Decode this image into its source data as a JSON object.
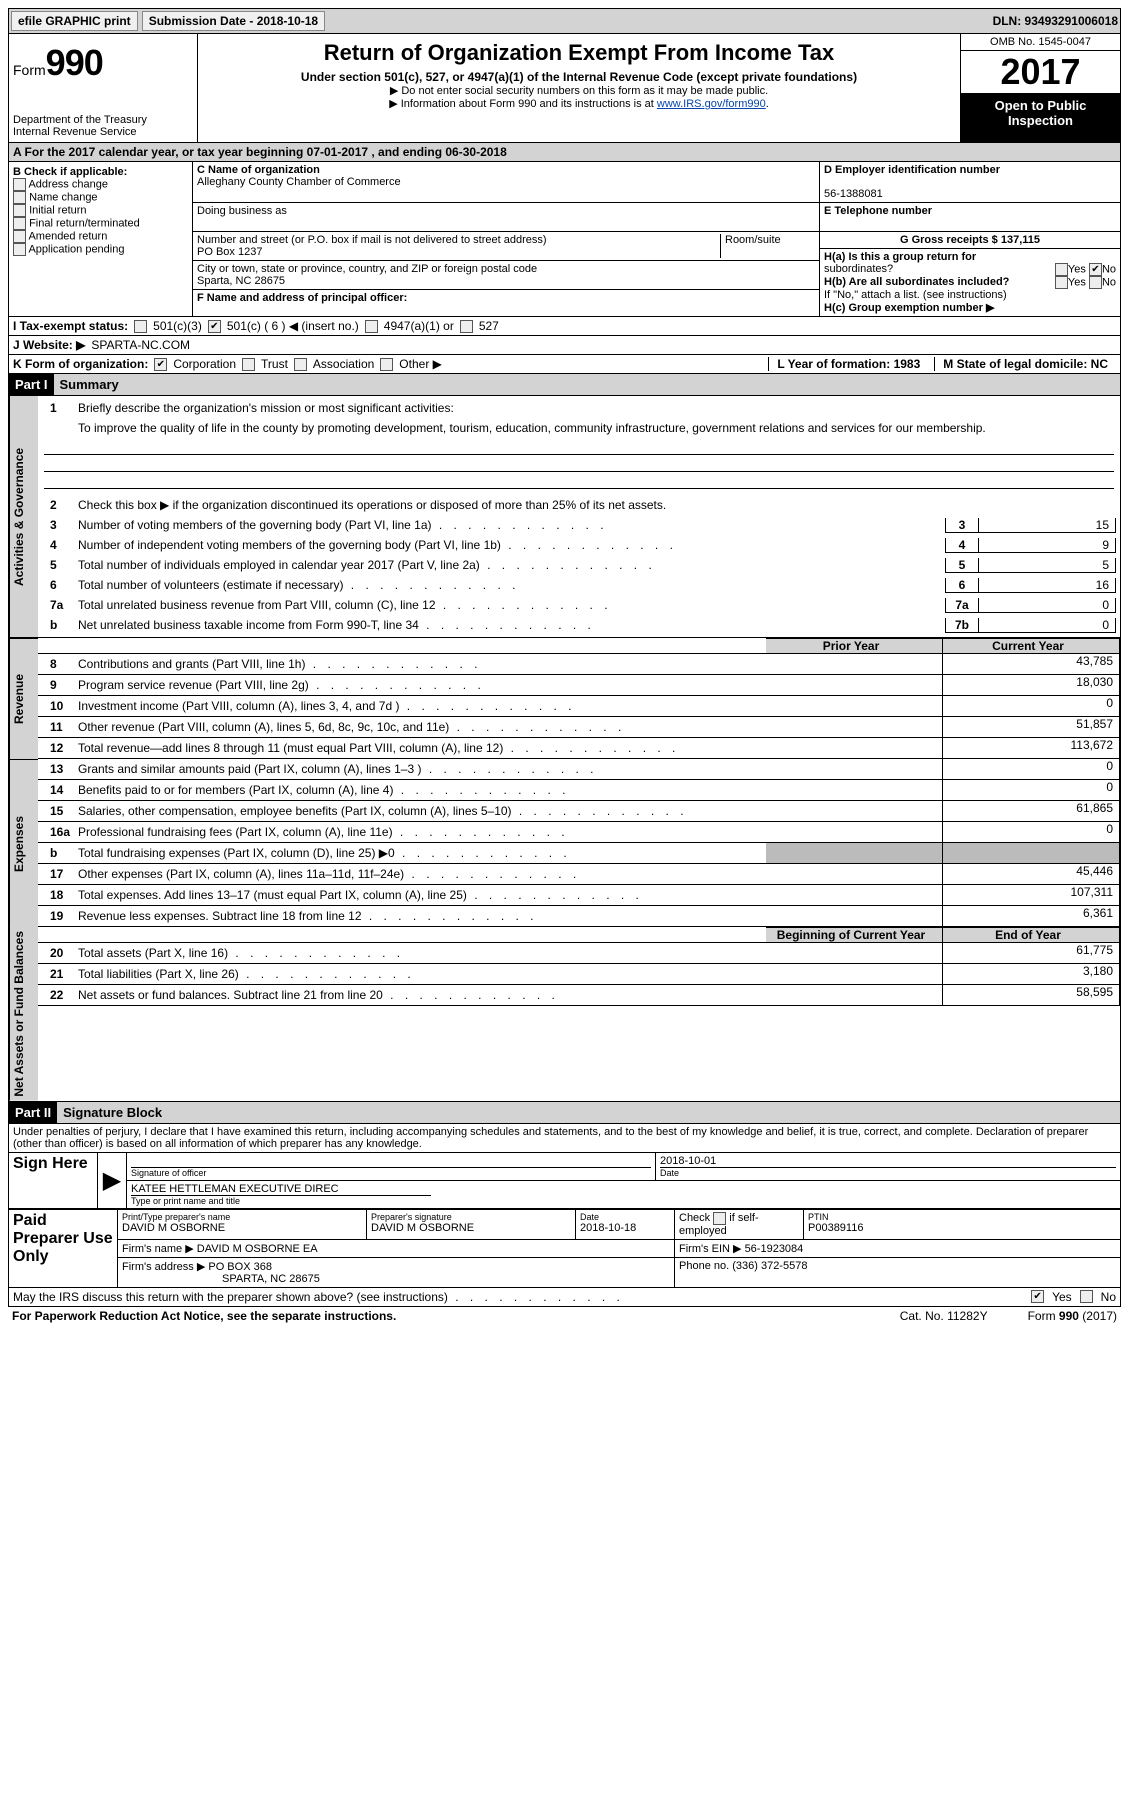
{
  "topBar": {
    "efile": "efile GRAPHIC print",
    "subDateLabel": "Submission Date - 2018-10-18",
    "dln": "DLN: 93493291006018"
  },
  "header": {
    "formWord": "Form",
    "formNum": "990",
    "dept1": "Department of the Treasury",
    "dept2": "Internal Revenue Service",
    "title": "Return of Organization Exempt From Income Tax",
    "subtitle": "Under section 501(c), 527, or 4947(a)(1) of the Internal Revenue Code (except private foundations)",
    "note1": "▶ Do not enter social security numbers on this form as it may be made public.",
    "note2_a": "▶ Information about Form 990 and its instructions is at ",
    "note2_link": "www.IRS.gov/form990",
    "note2_b": ".",
    "omb": "OMB No. 1545-0047",
    "year": "2017",
    "open1": "Open to Public",
    "open2": "Inspection"
  },
  "rowA": "A  For the 2017 calendar year, or tax year beginning 07-01-2017    , and ending 06-30-2018",
  "colB": {
    "label": "B Check if applicable:",
    "items": [
      "Address change",
      "Name change",
      "Initial return",
      "Final return/terminated",
      "Amended return",
      "Application pending"
    ]
  },
  "colC": {
    "nameLabel": "C Name of organization",
    "name": "Alleghany County Chamber of Commerce",
    "dbaLabel": "Doing business as",
    "streetLabel": "Number and street (or P.O. box if mail is not delivered to street address)",
    "roomLabel": "Room/suite",
    "street": "PO Box 1237",
    "cityLabel": "City or town, state or province, country, and ZIP or foreign postal code",
    "city": "Sparta, NC  28675",
    "officerLabel": "F Name and address of principal officer:"
  },
  "colD": {
    "einLabel": "D Employer identification number",
    "ein": "56-1388081",
    "phoneLabel": "E Telephone number",
    "grossLabel": "G Gross receipts $ 137,115",
    "ha": "H(a)  Is this a group return for",
    "ha2": "subordinates?",
    "hb": "H(b) Are all subordinates included?",
    "hbNote": "If \"No,\" attach a list. (see instructions)",
    "hc": "H(c) Group exemption number ▶",
    "yes": "Yes",
    "no": "No"
  },
  "rowI": {
    "label": "I  Tax-exempt status:",
    "o1": "501(c)(3)",
    "o2": "501(c) ( 6 ) ◀ (insert no.)",
    "o3": "4947(a)(1) or",
    "o4": "527"
  },
  "rowJ": {
    "label": "J  Website: ▶",
    "value": " SPARTA-NC.COM"
  },
  "rowK": {
    "label": "K Form of organization:",
    "o1": "Corporation",
    "o2": "Trust",
    "o3": "Association",
    "o4": "Other ▶",
    "l": "L Year of formation: 1983",
    "m": "M State of legal domicile: NC"
  },
  "part1": {
    "hdr": "Part I",
    "title": "Summary"
  },
  "mission": {
    "n": "1",
    "label": "Briefly describe the organization's mission or most significant activities:",
    "text": "To improve the quality of life in the county by promoting development, tourism, education, community infrastructure, government relations and services for our membership."
  },
  "gov": {
    "l2": "Check this box ▶        if the organization discontinued its operations or disposed of more than 25% of its net assets.",
    "rows": [
      {
        "n": "3",
        "d": "Number of voting members of the governing body (Part VI, line 1a)",
        "k": "3",
        "v": "15"
      },
      {
        "n": "4",
        "d": "Number of independent voting members of the governing body (Part VI, line 1b)",
        "k": "4",
        "v": "9"
      },
      {
        "n": "5",
        "d": "Total number of individuals employed in calendar year 2017 (Part V, line 2a)",
        "k": "5",
        "v": "5"
      },
      {
        "n": "6",
        "d": "Total number of volunteers (estimate if necessary)",
        "k": "6",
        "v": "16"
      },
      {
        "n": "7a",
        "d": "Total unrelated business revenue from Part VIII, column (C), line 12",
        "k": "7a",
        "v": "0"
      },
      {
        "n": "b",
        "d": "Net unrelated business taxable income from Form 990-T, line 34",
        "k": "7b",
        "v": "0"
      }
    ]
  },
  "twoColHdr": {
    "prior": "Prior Year",
    "current": "Current Year"
  },
  "rev": [
    {
      "n": "8",
      "d": "Contributions and grants (Part VIII, line 1h)",
      "p": "",
      "c": "43,785"
    },
    {
      "n": "9",
      "d": "Program service revenue (Part VIII, line 2g)",
      "p": "",
      "c": "18,030"
    },
    {
      "n": "10",
      "d": "Investment income (Part VIII, column (A), lines 3, 4, and 7d )",
      "p": "",
      "c": "0"
    },
    {
      "n": "11",
      "d": "Other revenue (Part VIII, column (A), lines 5, 6d, 8c, 9c, 10c, and 11e)",
      "p": "",
      "c": "51,857"
    },
    {
      "n": "12",
      "d": "Total revenue—add lines 8 through 11 (must equal Part VIII, column (A), line 12)",
      "p": "",
      "c": "113,672"
    }
  ],
  "exp": [
    {
      "n": "13",
      "d": "Grants and similar amounts paid (Part IX, column (A), lines 1–3 )",
      "p": "",
      "c": "0"
    },
    {
      "n": "14",
      "d": "Benefits paid to or for members (Part IX, column (A), line 4)",
      "p": "",
      "c": "0"
    },
    {
      "n": "15",
      "d": "Salaries, other compensation, employee benefits (Part IX, column (A), lines 5–10)",
      "p": "",
      "c": "61,865"
    },
    {
      "n": "16a",
      "d": "Professional fundraising fees (Part IX, column (A), line 11e)",
      "p": "",
      "c": "0"
    },
    {
      "n": "b",
      "d": "Total fundraising expenses (Part IX, column (D), line 25) ▶0",
      "p": "shade",
      "c": "shade"
    },
    {
      "n": "17",
      "d": "Other expenses (Part IX, column (A), lines 11a–11d, 11f–24e)",
      "p": "",
      "c": "45,446"
    },
    {
      "n": "18",
      "d": "Total expenses. Add lines 13–17 (must equal Part IX, column (A), line 25)",
      "p": "",
      "c": "107,311"
    },
    {
      "n": "19",
      "d": "Revenue less expenses. Subtract line 18 from line 12",
      "p": "",
      "c": "6,361"
    }
  ],
  "netHdr": {
    "beg": "Beginning of Current Year",
    "end": "End of Year"
  },
  "net": [
    {
      "n": "20",
      "d": "Total assets (Part X, line 16)",
      "p": "",
      "c": "61,775"
    },
    {
      "n": "21",
      "d": "Total liabilities (Part X, line 26)",
      "p": "",
      "c": "3,180"
    },
    {
      "n": "22",
      "d": "Net assets or fund balances. Subtract line 21 from line 20",
      "p": "",
      "c": "58,595"
    }
  ],
  "part2": {
    "hdr": "Part II",
    "title": "Signature Block"
  },
  "penalty": "Under penalties of perjury, I declare that I have examined this return, including accompanying schedules and statements, and to the best of my knowledge and belief, it is true, correct, and complete. Declaration of preparer (other than officer) is based on all information of which preparer has any knowledge.",
  "sign": {
    "here": "Sign Here",
    "sigOfficer": "Signature of officer",
    "date": "Date",
    "dateVal": "2018-10-01",
    "nameTitle": "KATEE HETTLEMAN  EXECUTIVE DIREC",
    "typeLabel": "Type or print name and title"
  },
  "preparer": {
    "label": "Paid Preparer Use Only",
    "nameLabel": "Print/Type preparer's name",
    "name": "DAVID M OSBORNE",
    "sigLabel": "Preparer's signature",
    "sig": "DAVID M OSBORNE",
    "dateLabel": "Date",
    "date": "2018-10-18",
    "checkLabel": "Check        if self-employed",
    "ptinLabel": "PTIN",
    "ptin": "P00389116",
    "firmNameLabel": "Firm's name     ▶",
    "firmName": "DAVID M OSBORNE EA",
    "firmEinLabel": "Firm's EIN ▶",
    "firmEin": "56-1923084",
    "firmAddrLabel": "Firm's address ▶",
    "firmAddr1": "PO BOX 368",
    "firmAddr2": "SPARTA, NC  28675",
    "phoneLabel": "Phone no.",
    "phone": "(336) 372-5578"
  },
  "irsDiscuss": {
    "q": "May the IRS discuss this return with the preparer shown above? (see instructions)",
    "yes": "Yes",
    "no": "No"
  },
  "footer": {
    "pra": "For Paperwork Reduction Act Notice, see the separate instructions.",
    "cat": "Cat. No. 11282Y",
    "form": "Form 990 (2017)"
  },
  "vlabels": {
    "gov": "Activities & Governance",
    "rev": "Revenue",
    "exp": "Expenses",
    "net": "Net Assets or Fund Balances"
  }
}
